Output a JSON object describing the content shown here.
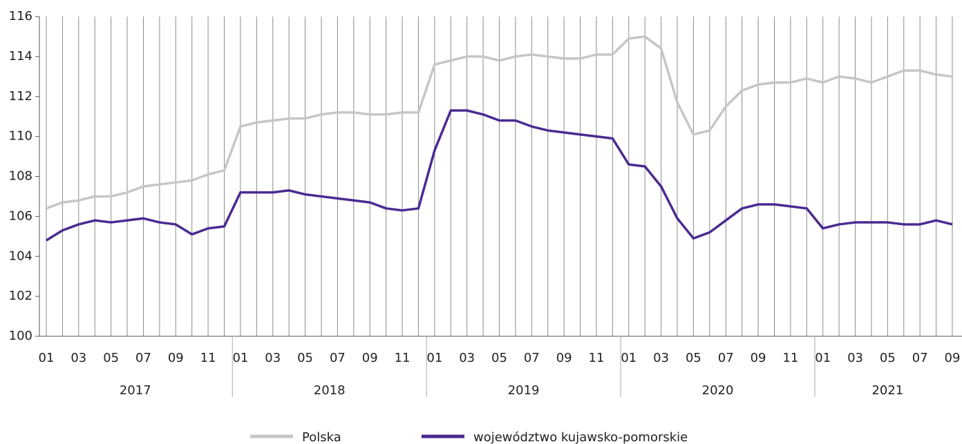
{
  "chart_data": {
    "type": "line",
    "categories": [
      "01",
      null,
      "03",
      null,
      "05",
      null,
      "07",
      null,
      "09",
      null,
      "11",
      null,
      "01",
      null,
      "03",
      null,
      "05",
      null,
      "07",
      null,
      "09",
      null,
      "11",
      null,
      "01",
      null,
      "03",
      null,
      "05",
      null,
      "07",
      null,
      "09",
      null,
      "11",
      null,
      "01",
      null,
      "03",
      null,
      "05",
      null,
      "07",
      null,
      "09",
      null,
      "11",
      null,
      "01",
      null,
      "03",
      null,
      "05",
      null,
      "07",
      null,
      "09"
    ],
    "groups": [
      "2017",
      "2018",
      "2019",
      "2020",
      "2021"
    ],
    "series": [
      {
        "name": "Polska",
        "color": "#c6c6c6",
        "values": [
          106.4,
          106.7,
          106.8,
          107.0,
          107.0,
          107.2,
          107.5,
          107.6,
          107.7,
          107.8,
          108.1,
          108.3,
          110.5,
          110.7,
          110.8,
          110.9,
          110.9,
          111.1,
          111.2,
          111.2,
          111.1,
          111.1,
          111.2,
          111.2,
          113.6,
          113.8,
          114.0,
          114.0,
          113.8,
          114.0,
          114.1,
          114.0,
          113.9,
          113.9,
          114.1,
          114.1,
          114.9,
          115.0,
          114.4,
          111.7,
          110.1,
          110.3,
          111.5,
          112.3,
          112.6,
          112.7,
          112.7,
          112.9,
          112.7,
          113.0,
          112.9,
          112.7,
          113.0,
          113.3,
          113.3,
          113.1,
          113.0
        ]
      },
      {
        "name": "województwo kujawsko-pomorskie",
        "color": "#4b2a91",
        "values": [
          104.8,
          105.3,
          105.6,
          105.8,
          105.7,
          105.8,
          105.9,
          105.7,
          105.6,
          105.1,
          105.4,
          105.5,
          107.2,
          107.2,
          107.2,
          107.3,
          107.1,
          107.0,
          106.9,
          106.8,
          106.7,
          106.4,
          106.3,
          106.4,
          109.3,
          111.3,
          111.3,
          111.1,
          110.8,
          110.8,
          110.5,
          110.3,
          110.2,
          110.1,
          110.0,
          109.9,
          108.6,
          108.5,
          107.5,
          105.9,
          104.9,
          105.2,
          105.8,
          106.4,
          106.6,
          106.6,
          106.5,
          106.4,
          105.4,
          105.6,
          105.7,
          105.7,
          105.7,
          105.6,
          105.6,
          105.8,
          105.6
        ]
      }
    ],
    "ylim": [
      100,
      116
    ],
    "yticks": [
      100,
      102,
      104,
      106,
      108,
      110,
      112,
      114,
      116
    ],
    "grid": true,
    "legend": "bottom"
  }
}
